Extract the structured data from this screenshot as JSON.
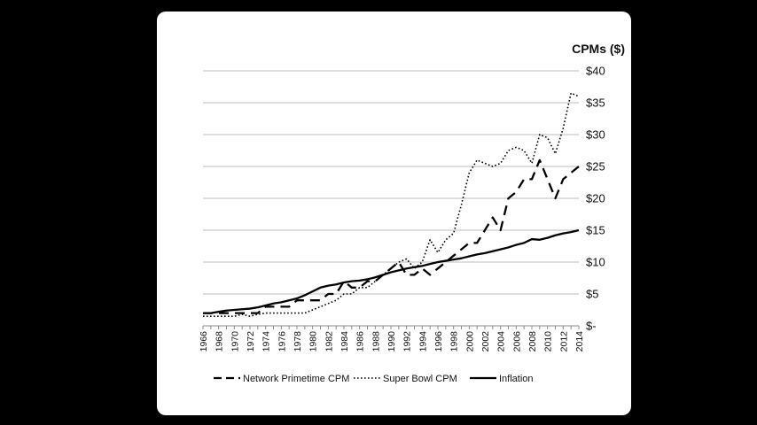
{
  "chart_data": {
    "type": "line",
    "unit_label": "CPMs ($)",
    "y_axis_side": "right",
    "ylim": [
      0,
      40
    ],
    "y_ticks": [
      0,
      5,
      10,
      15,
      20,
      25,
      30,
      35,
      40
    ],
    "y_tick_labels": [
      "$-",
      "$5",
      "$10",
      "$15",
      "$20",
      "$25",
      "$30",
      "$35",
      "$40"
    ],
    "grid": "horizontal",
    "legend_position": "bottom",
    "x_tick_labels": [
      "1966",
      "1968",
      "1970",
      "1972",
      "1974",
      "1976",
      "1978",
      "1980",
      "1982",
      "1984",
      "1986",
      "1988",
      "1990",
      "1992",
      "1994",
      "1996",
      "1998",
      "2000",
      "2002",
      "2004",
      "2006",
      "2008",
      "2010",
      "2012",
      "2014"
    ],
    "x": [
      1966,
      1967,
      1968,
      1969,
      1970,
      1971,
      1972,
      1973,
      1974,
      1975,
      1976,
      1977,
      1978,
      1979,
      1980,
      1981,
      1982,
      1983,
      1984,
      1985,
      1986,
      1987,
      1988,
      1989,
      1990,
      1991,
      1992,
      1993,
      1994,
      1995,
      1996,
      1997,
      1998,
      1999,
      2000,
      2001,
      2002,
      2003,
      2004,
      2005,
      2006,
      2007,
      2008,
      2009,
      2010,
      2011,
      2012,
      2013,
      2014
    ],
    "series": [
      {
        "name": "Network Primetime CPM",
        "line_style": "dashed",
        "values": [
          2,
          2,
          2,
          2,
          2,
          2,
          2,
          2,
          3,
          3,
          3,
          3,
          4,
          4,
          4,
          4,
          5,
          5,
          7,
          6,
          6,
          7,
          7,
          8,
          9,
          10,
          8,
          8,
          9,
          8,
          9,
          10,
          11,
          12,
          13,
          13,
          15,
          17,
          15,
          20,
          21,
          23,
          23,
          26,
          23,
          20,
          23,
          24,
          25
        ]
      },
      {
        "name": "Super Bowl CPM",
        "line_style": "dotted",
        "values": [
          1.5,
          1.5,
          1.5,
          1.5,
          1.5,
          1.8,
          1.5,
          1.8,
          2,
          2,
          2,
          2,
          2,
          2,
          2.5,
          3,
          3.5,
          4,
          5,
          5,
          6,
          6,
          7,
          8,
          9,
          10,
          10.5,
          9,
          10,
          13.5,
          11.5,
          13.5,
          14.5,
          19,
          24,
          26,
          25.5,
          25,
          25.5,
          27.5,
          28,
          27.5,
          25.5,
          30,
          29.5,
          27,
          31,
          36.5,
          36
        ]
      },
      {
        "name": "Inflation",
        "line_style": "solid",
        "values": [
          2,
          2,
          2.2,
          2.4,
          2.5,
          2.6,
          2.7,
          2.9,
          3.2,
          3.5,
          3.7,
          4,
          4.3,
          4.8,
          5.4,
          6,
          6.3,
          6.5,
          6.8,
          7,
          7.1,
          7.3,
          7.6,
          8,
          8.4,
          8.7,
          9,
          9.2,
          9.4,
          9.7,
          10,
          10.2,
          10.4,
          10.6,
          10.9,
          11.2,
          11.4,
          11.7,
          12,
          12.3,
          12.7,
          13,
          13.6,
          13.5,
          13.8,
          14.2,
          14.5,
          14.7,
          15
        ]
      }
    ]
  }
}
